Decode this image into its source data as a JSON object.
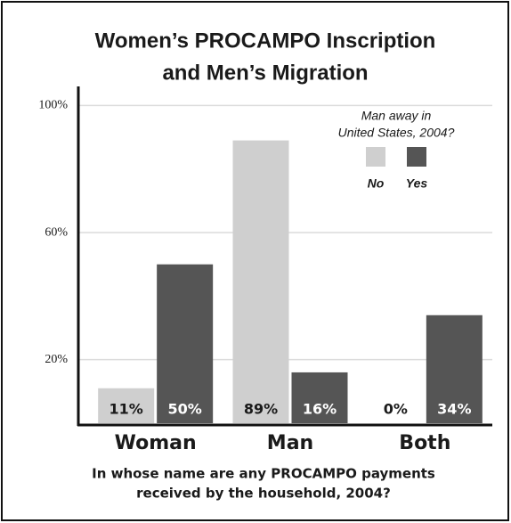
{
  "chart_data": {
    "type": "bar",
    "title": [
      "Women’s PROCAMPO Inscription",
      "and Men’s Migration"
    ],
    "xlabel": [
      "In whose name are any PROCAMPO payments",
      "received by the household, 2004?"
    ],
    "categories": [
      "Woman",
      "Man",
      "Both"
    ],
    "legend_title": [
      "Man away in",
      "United States, 2004?"
    ],
    "series": [
      {
        "name": "No",
        "color": "#cfcfcf",
        "values": [
          11,
          89,
          0
        ],
        "value_labels": [
          "11%",
          "89%",
          "0%"
        ]
      },
      {
        "name": "Yes",
        "color": "#555555",
        "values": [
          50,
          16,
          34
        ],
        "value_labels": [
          "50%",
          "16%",
          "34%"
        ]
      }
    ],
    "ylim": [
      0,
      106
    ],
    "yticks": [
      {
        "value": 20,
        "label": "20%"
      },
      {
        "value": 60,
        "label": "60%"
      },
      {
        "value": 100,
        "label": "100%"
      }
    ],
    "grid": true
  }
}
